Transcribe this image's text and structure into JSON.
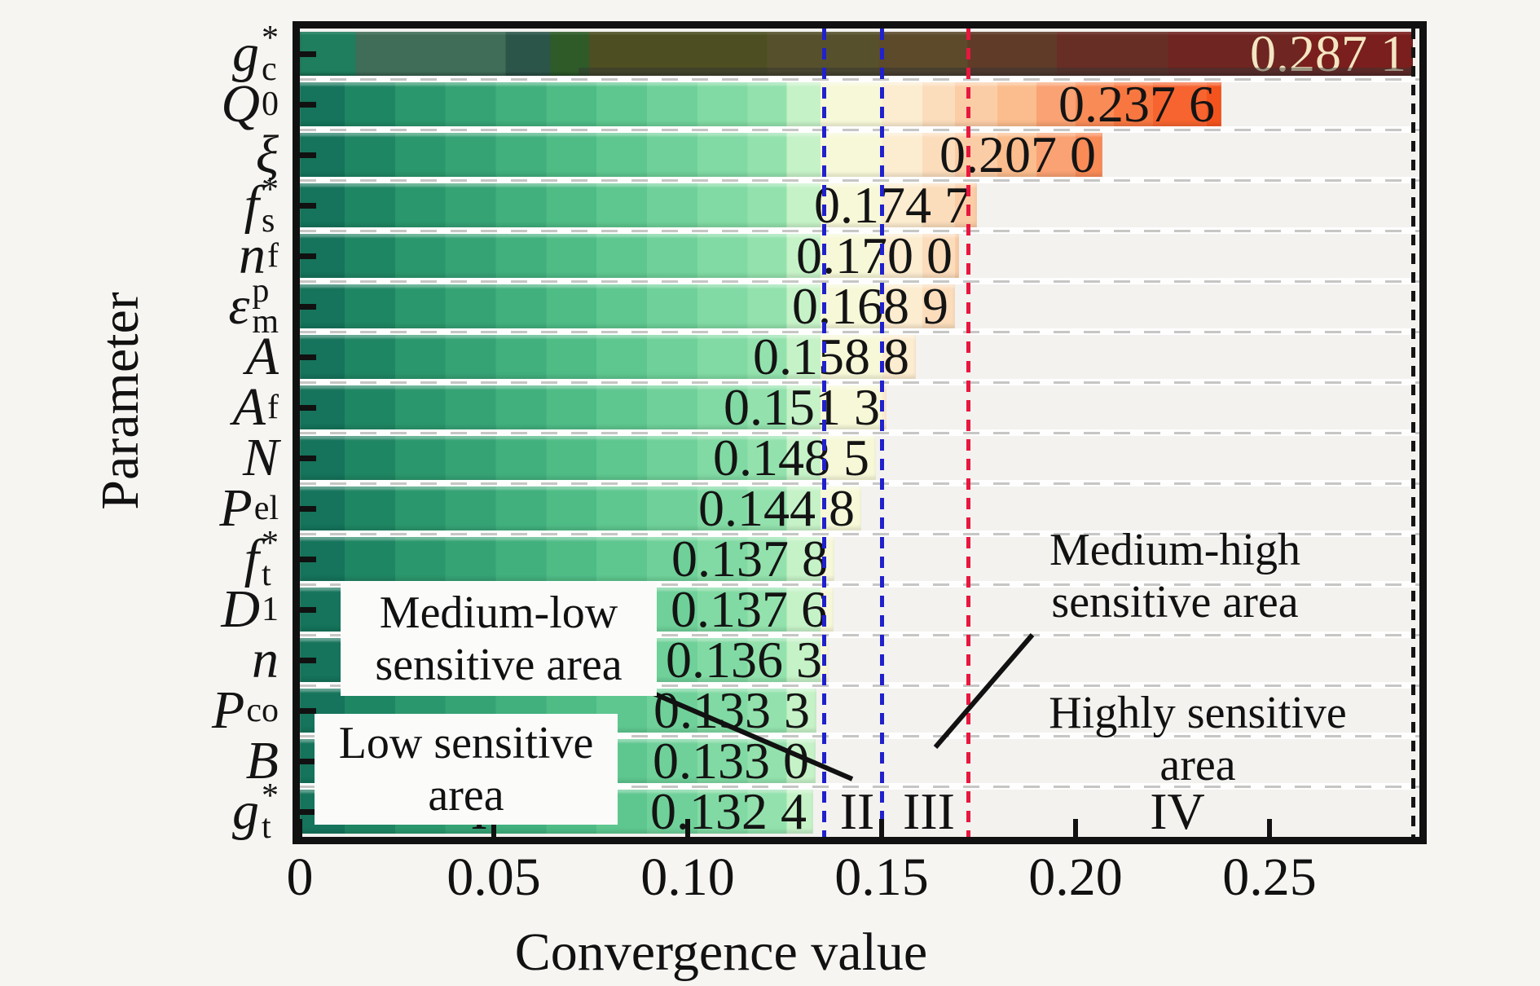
{
  "chart_data": {
    "type": "bar",
    "orientation": "horizontal",
    "title": "",
    "xlabel": "Convergence value",
    "ylabel": "Parameter",
    "xlim": [
      0,
      0.2887
    ],
    "grid": "horizontal-dashed",
    "x_ticks": [
      0,
      0.05,
      0.1,
      0.15,
      0.2,
      0.25
    ],
    "x_tick_labels": [
      "0",
      "0.05",
      "0.10",
      "0.15",
      "0.20",
      "0.25"
    ],
    "bars": [
      {
        "param": {
          "base": "g",
          "sup": "*",
          "sub": "c"
        },
        "value": 0.2871,
        "label": "0.287 1",
        "dark": true
      },
      {
        "param": {
          "base": "Q",
          "sub": "0"
        },
        "value": 0.2376,
        "label": "0.237 6"
      },
      {
        "param": {
          "base": "ξ"
        },
        "value": 0.207,
        "label": "0.207 0"
      },
      {
        "param": {
          "base": "f",
          "sup": "*",
          "sub": "s"
        },
        "value": 0.1747,
        "label": "0.174 7"
      },
      {
        "param": {
          "base": "n",
          "sub": "f"
        },
        "value": 0.17,
        "label": "0.170 0"
      },
      {
        "param": {
          "base": "ε",
          "sup": "p",
          "sub": "m"
        },
        "value": 0.1689,
        "label": "0.168 9"
      },
      {
        "param": {
          "base": "A"
        },
        "value": 0.1588,
        "label": "0.158 8"
      },
      {
        "param": {
          "base": "A",
          "sub": "f"
        },
        "value": 0.1513,
        "label": "0.151 3"
      },
      {
        "param": {
          "base": "N"
        },
        "value": 0.1485,
        "label": "0.148 5"
      },
      {
        "param": {
          "base": "P",
          "sub": "el"
        },
        "value": 0.1448,
        "label": "0.144 8"
      },
      {
        "param": {
          "base": "f",
          "sup": "*",
          "sub": "t"
        },
        "value": 0.1378,
        "label": "0.137 8"
      },
      {
        "param": {
          "base": "D",
          "sub": "1"
        },
        "value": 0.1376,
        "label": "0.137 6"
      },
      {
        "param": {
          "base": "n"
        },
        "value": 0.1363,
        "label": "0.136 3"
      },
      {
        "param": {
          "base": "P",
          "sub": "co"
        },
        "value": 0.1333,
        "label": "0.133 3"
      },
      {
        "param": {
          "base": "B"
        },
        "value": 0.133,
        "label": "0.133 0"
      },
      {
        "param": {
          "base": "g",
          "sup": "*",
          "sub": "t"
        },
        "value": 0.1324,
        "label": "0.132 4"
      }
    ],
    "value_label_color": "#141414",
    "dark_value_label_color": "#f3e6c2",
    "thresholds": [
      {
        "name": "region-boundary-1",
        "value": 0.135,
        "color": "#2121cc",
        "dash": [
          14,
          10
        ]
      },
      {
        "name": "region-boundary-2",
        "value": 0.15,
        "color": "#2121cc",
        "dash": [
          14,
          10
        ]
      },
      {
        "name": "region-boundary-3",
        "value": 0.1723,
        "color": "#e8173f",
        "dash": [
          14,
          10
        ]
      },
      {
        "name": "max-convergence",
        "value": 0.2871,
        "color": "#141414",
        "dash": [
          13,
          10
        ]
      }
    ],
    "regions": [
      {
        "numeral": "I",
        "value": 0.0462
      },
      {
        "numeral": "II",
        "value": 0.1437
      },
      {
        "numeral": "III",
        "value": 0.1622
      },
      {
        "numeral": "IV",
        "value": 0.2263
      }
    ],
    "colormap": [
      [
        0.0,
        0.04,
        "#15745b"
      ],
      [
        0.04,
        0.085,
        "#1f8663"
      ],
      [
        0.085,
        0.13,
        "#2b976c"
      ],
      [
        0.13,
        0.175,
        "#36a375"
      ],
      [
        0.175,
        0.22,
        "#41b07d"
      ],
      [
        0.22,
        0.265,
        "#4fbc86"
      ],
      [
        0.265,
        0.31,
        "#5ec78f"
      ],
      [
        0.31,
        0.355,
        "#6fd199"
      ],
      [
        0.355,
        0.4,
        "#81daa3"
      ],
      [
        0.4,
        0.435,
        "#93e2ad"
      ],
      [
        0.435,
        0.465,
        "#c6f2c8"
      ],
      [
        0.465,
        0.52,
        "#f7f8d8"
      ],
      [
        0.52,
        0.556,
        "#fcecd0"
      ],
      [
        0.556,
        0.585,
        "#fbddbc"
      ],
      [
        0.585,
        0.623,
        "#fbcda6"
      ],
      [
        0.623,
        0.658,
        "#fbbd8d"
      ],
      [
        0.658,
        0.693,
        "#faa273"
      ],
      [
        0.693,
        0.727,
        "#f98b57"
      ],
      [
        0.727,
        0.762,
        "#f87740"
      ],
      [
        0.762,
        0.81,
        "#f76430"
      ],
      [
        0.81,
        0.85,
        "#f5531d"
      ],
      [
        0.85,
        1.0,
        "#f04f1a"
      ]
    ],
    "dark_colormap": [
      [
        0.0,
        0.05,
        "#1e7e5e"
      ],
      [
        0.05,
        0.185,
        "#3f6d58"
      ],
      [
        0.185,
        0.225,
        "#2c554a"
      ],
      [
        0.225,
        0.26,
        "#2e5b28"
      ],
      [
        0.26,
        0.42,
        "#4d4f22"
      ],
      [
        0.42,
        0.52,
        "#56512c"
      ],
      [
        0.52,
        0.6,
        "#5c4a2b"
      ],
      [
        0.6,
        0.68,
        "#5f3b28"
      ],
      [
        0.68,
        0.78,
        "#672e25"
      ],
      [
        0.78,
        0.9,
        "#6f2521"
      ],
      [
        0.9,
        1.0,
        "#7a1f1d"
      ]
    ]
  },
  "annotations": {
    "medium_low": {
      "line1": "Medium-low",
      "line2": "sensitive area"
    },
    "low": {
      "line1": "Low sensitive",
      "line2": "area"
    },
    "medium_high": {
      "line1": "Medium-high",
      "line2": "sensitive area"
    },
    "high": {
      "line1": "Highly sensitive",
      "line2": "area"
    }
  }
}
